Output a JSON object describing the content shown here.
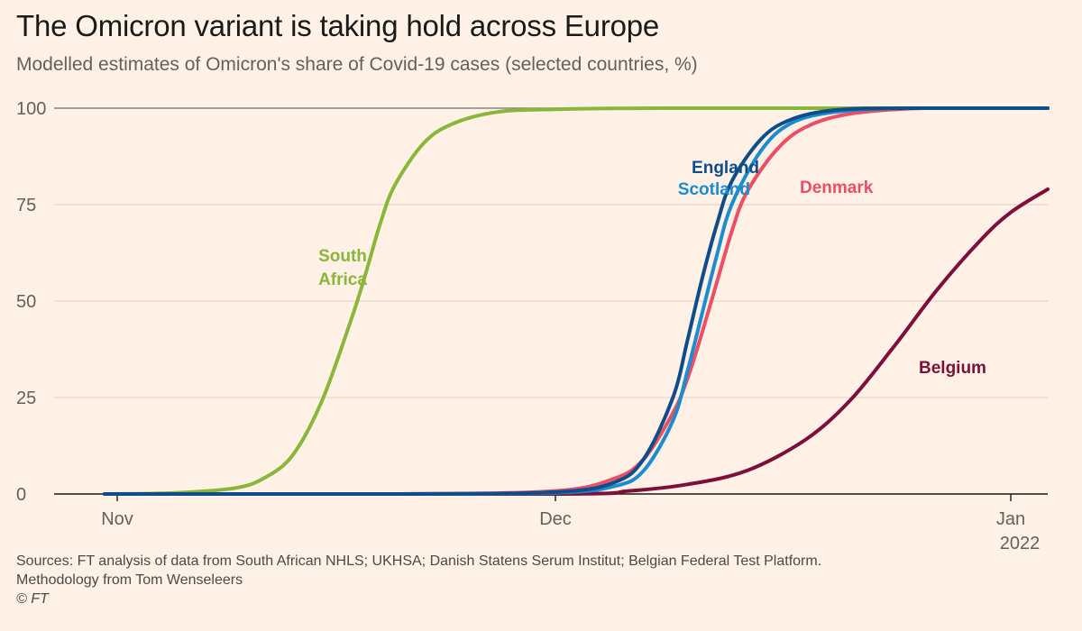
{
  "title": "The Omicron variant is taking hold across Europe",
  "subtitle": "Modelled estimates of Omicron's share of Covid-19 cases (selected countries, %)",
  "footer": {
    "sources": "Sources: FT analysis of data from South African NHLS; UKHSA; Danish Statens Serum Institut; Belgian Federal Test Platform.",
    "methodology": "Methodology from Tom Wenseleers",
    "copyright": "© FT"
  },
  "chart_data": {
    "type": "line",
    "xlabel": "",
    "ylabel": "",
    "ylim": [
      0,
      100
    ],
    "yticks": [
      0,
      25,
      50,
      75,
      100
    ],
    "xlim": [
      "2021-11-01",
      "2022-01-03"
    ],
    "xticks": [
      {
        "date": "2021-11-01",
        "label": "Nov"
      },
      {
        "date": "2021-12-01",
        "label": "Dec"
      },
      {
        "date": "2022-01-01",
        "label": "Jan",
        "sublabel": "2022"
      }
    ],
    "grid": true,
    "series": [
      {
        "name": "South Africa",
        "color": "#8ab63a",
        "points": [
          [
            "2021-11-01",
            0
          ],
          [
            "2021-11-05",
            0.3
          ],
          [
            "2021-11-09",
            1.5
          ],
          [
            "2021-11-11",
            4
          ],
          [
            "2021-11-13",
            10
          ],
          [
            "2021-11-15",
            24
          ],
          [
            "2021-11-17",
            45
          ],
          [
            "2021-11-18",
            57
          ],
          [
            "2021-11-19",
            70
          ],
          [
            "2021-11-20",
            80
          ],
          [
            "2021-11-22",
            91
          ],
          [
            "2021-11-24",
            96
          ],
          [
            "2021-11-27",
            99
          ],
          [
            "2021-12-01",
            99.7
          ],
          [
            "2021-12-08",
            100
          ],
          [
            "2022-01-03",
            100
          ]
        ]
      },
      {
        "name": "England",
        "color": "#0f4c8a",
        "points": [
          [
            "2021-11-01",
            0
          ],
          [
            "2021-11-20",
            0
          ],
          [
            "2021-12-01",
            0.5
          ],
          [
            "2021-12-05",
            3
          ],
          [
            "2021-12-07",
            9
          ],
          [
            "2021-12-09",
            25
          ],
          [
            "2021-12-10",
            40
          ],
          [
            "2021-12-11",
            56
          ],
          [
            "2021-12-12",
            70
          ],
          [
            "2021-12-13",
            81
          ],
          [
            "2021-12-15",
            92
          ],
          [
            "2021-12-17",
            97
          ],
          [
            "2021-12-20",
            99.5
          ],
          [
            "2021-12-25",
            100
          ],
          [
            "2022-01-03",
            100
          ]
        ]
      },
      {
        "name": "Scotland",
        "color": "#1a8ccf",
        "points": [
          [
            "2021-11-01",
            0
          ],
          [
            "2021-11-20",
            0
          ],
          [
            "2021-12-01",
            0.3
          ],
          [
            "2021-12-05",
            2
          ],
          [
            "2021-12-07",
            6
          ],
          [
            "2021-12-09",
            19
          ],
          [
            "2021-12-10",
            32
          ],
          [
            "2021-12-11",
            47
          ],
          [
            "2021-12-12",
            62
          ],
          [
            "2021-12-13",
            75
          ],
          [
            "2021-12-15",
            89
          ],
          [
            "2021-12-17",
            96
          ],
          [
            "2021-12-20",
            99
          ],
          [
            "2021-12-25",
            100
          ],
          [
            "2022-01-03",
            100
          ]
        ]
      },
      {
        "name": "Denmark",
        "color": "#ec4f64",
        "points": [
          [
            "2021-11-01",
            0
          ],
          [
            "2021-11-20",
            0
          ],
          [
            "2021-12-01",
            0.8
          ],
          [
            "2021-12-05",
            4
          ],
          [
            "2021-12-07",
            9
          ],
          [
            "2021-12-09",
            21
          ],
          [
            "2021-12-10",
            30
          ],
          [
            "2021-12-11",
            42
          ],
          [
            "2021-12-12",
            55
          ],
          [
            "2021-12-13",
            68
          ],
          [
            "2021-12-14",
            78
          ],
          [
            "2021-12-16",
            89
          ],
          [
            "2021-12-18",
            95
          ],
          [
            "2021-12-21",
            98.5
          ],
          [
            "2021-12-26",
            100
          ],
          [
            "2022-01-03",
            100
          ]
        ]
      },
      {
        "name": "Belgium",
        "color": "#7d0f3a",
        "points": [
          [
            "2021-11-01",
            0
          ],
          [
            "2021-12-01",
            0
          ],
          [
            "2021-12-06",
            0.8
          ],
          [
            "2021-12-10",
            2.5
          ],
          [
            "2021-12-14",
            6
          ],
          [
            "2021-12-18",
            14
          ],
          [
            "2021-12-21",
            24
          ],
          [
            "2021-12-24",
            38
          ],
          [
            "2021-12-27",
            53
          ],
          [
            "2021-12-30",
            66
          ],
          [
            "2022-01-01",
            73
          ],
          [
            "2022-01-03",
            79
          ]
        ]
      }
    ],
    "labels": [
      {
        "text": "South",
        "series": "South Africa"
      },
      {
        "text": "Africa",
        "series": "South Africa"
      },
      {
        "text": "England",
        "series": "England"
      },
      {
        "text": "Scotland",
        "series": "Scotland"
      },
      {
        "text": "Denmark",
        "series": "Denmark"
      },
      {
        "text": "Belgium",
        "series": "Belgium"
      }
    ]
  }
}
